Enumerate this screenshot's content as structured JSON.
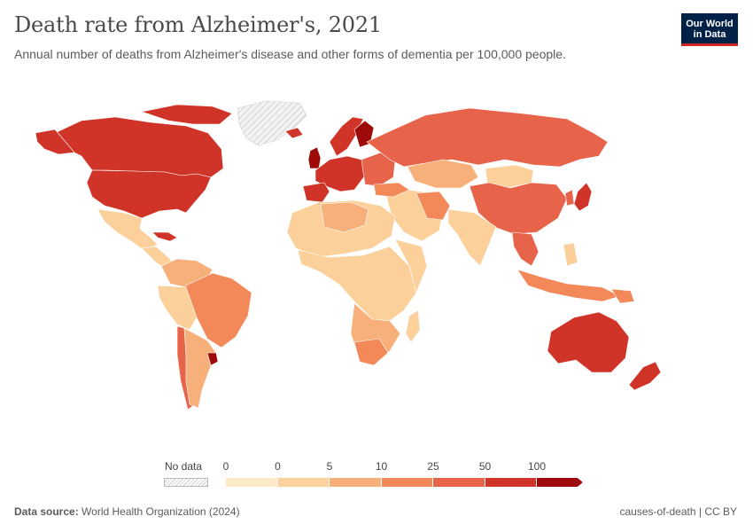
{
  "header": {
    "title": "Death rate from Alzheimer's, 2021",
    "subtitle": "Annual number of deaths from Alzheimer's disease and other forms of dementia per 100,000 people."
  },
  "logo": {
    "line1": "Our World",
    "line2": "in Data"
  },
  "legend": {
    "no_data_label": "No data",
    "ticks": [
      "0",
      "0",
      "5",
      "10",
      "25",
      "50",
      "100"
    ],
    "colors": [
      "#fde9c8",
      "#fbd09a",
      "#f8b07a",
      "#f38858",
      "#e7634a",
      "#d03428",
      "#9e0a0a"
    ]
  },
  "footer": {
    "source_label": "Data source:",
    "source_text": "World Health Organization (2024)",
    "right_text": "causes-of-death | CC BY"
  },
  "map_colors": {
    "no_data": "#e8e8e8",
    "c0": "#fde9c8",
    "c1": "#fbd09a",
    "c2": "#f8b07a",
    "c3": "#f38858",
    "c4": "#e7634a",
    "c5": "#d03428",
    "c6": "#9e0a0a"
  }
}
